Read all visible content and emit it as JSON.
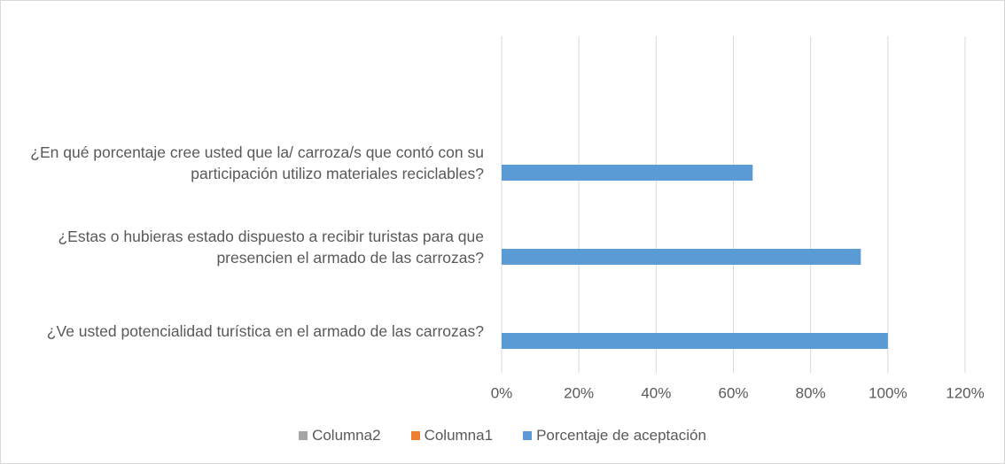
{
  "chart_data": {
    "type": "barh",
    "categories": [
      null,
      "¿En qué porcentaje cree usted que la/ carroza/s que contó con su participación utilizo  materiales reciclables?",
      "¿Estas o hubieras estado dispuesto a recibir turistas para que presencien el armado de las carrozas?",
      "¿Ve usted potencialidad turística en el armado de las carrozas?"
    ],
    "series": [
      {
        "name": "Columna2",
        "color": "#a5a5a5",
        "values": [
          null,
          null,
          null,
          null
        ]
      },
      {
        "name": "Columna1",
        "color": "#ed7d31",
        "values": [
          null,
          null,
          null,
          null
        ]
      },
      {
        "name": "Porcentaje de aceptación",
        "color": "#5b9bd5",
        "values": [
          null,
          65,
          93,
          100
        ]
      }
    ],
    "xlim": [
      0,
      120
    ],
    "xticks": [
      {
        "value": 0,
        "label": "0%"
      },
      {
        "value": 20,
        "label": "20%"
      },
      {
        "value": 40,
        "label": "40%"
      },
      {
        "value": 60,
        "label": "60%"
      },
      {
        "value": 80,
        "label": "80%"
      },
      {
        "value": 100,
        "label": "100%"
      },
      {
        "value": 120,
        "label": "120%"
      }
    ],
    "grid": true,
    "legend": "bottom"
  }
}
